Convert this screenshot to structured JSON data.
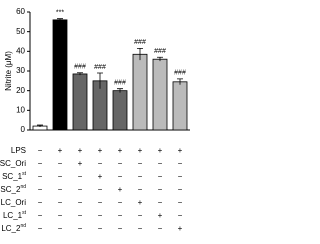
{
  "chart_data": {
    "type": "bar",
    "y_label": "Nitrite (μM)",
    "values": [
      2,
      56,
      28.5,
      25,
      20,
      38.5,
      36,
      24.5
    ],
    "errors": [
      0.5,
      0.6,
      0.6,
      4,
      1,
      3,
      1,
      1.5
    ],
    "colors": [
      "#ffffff",
      "#000000",
      "#666666",
      "#666666",
      "#666666",
      "#bbbbbb",
      "#bbbbbb",
      "#bbbbbb"
    ],
    "annotations": [
      null,
      "***",
      "###",
      "###",
      "###",
      "###",
      "###",
      "###"
    ],
    "ylim": [
      0,
      60
    ],
    "yticks": [
      0,
      10,
      20,
      30,
      40,
      50,
      60
    ]
  },
  "table": {
    "rows": [
      {
        "label": "LPS",
        "sup": null,
        "cells": [
          "−",
          "+",
          "+",
          "+",
          "+",
          "+",
          "+",
          "+"
        ]
      },
      {
        "label": "SC_Ori",
        "sup": null,
        "cells": [
          "−",
          "−",
          "+",
          "−",
          "−",
          "−",
          "−",
          "−"
        ]
      },
      {
        "label": "SC_1",
        "sup": "st",
        "cells": [
          "−",
          "−",
          "−",
          "+",
          "−",
          "−",
          "−",
          "−"
        ]
      },
      {
        "label": "SC_2",
        "sup": "nd",
        "cells": [
          "−",
          "−",
          "−",
          "−",
          "+",
          "−",
          "−",
          "−"
        ]
      },
      {
        "label": "LC_Ori",
        "sup": null,
        "cells": [
          "−",
          "−",
          "−",
          "−",
          "−",
          "+",
          "−",
          "−"
        ]
      },
      {
        "label": "LC_1",
        "sup": "st",
        "cells": [
          "−",
          "−",
          "−",
          "−",
          "−",
          "−",
          "+",
          "−"
        ]
      },
      {
        "label": "LC_2",
        "sup": "nd",
        "cells": [
          "−",
          "−",
          "−",
          "−",
          "−",
          "−",
          "−",
          "+"
        ]
      }
    ]
  }
}
